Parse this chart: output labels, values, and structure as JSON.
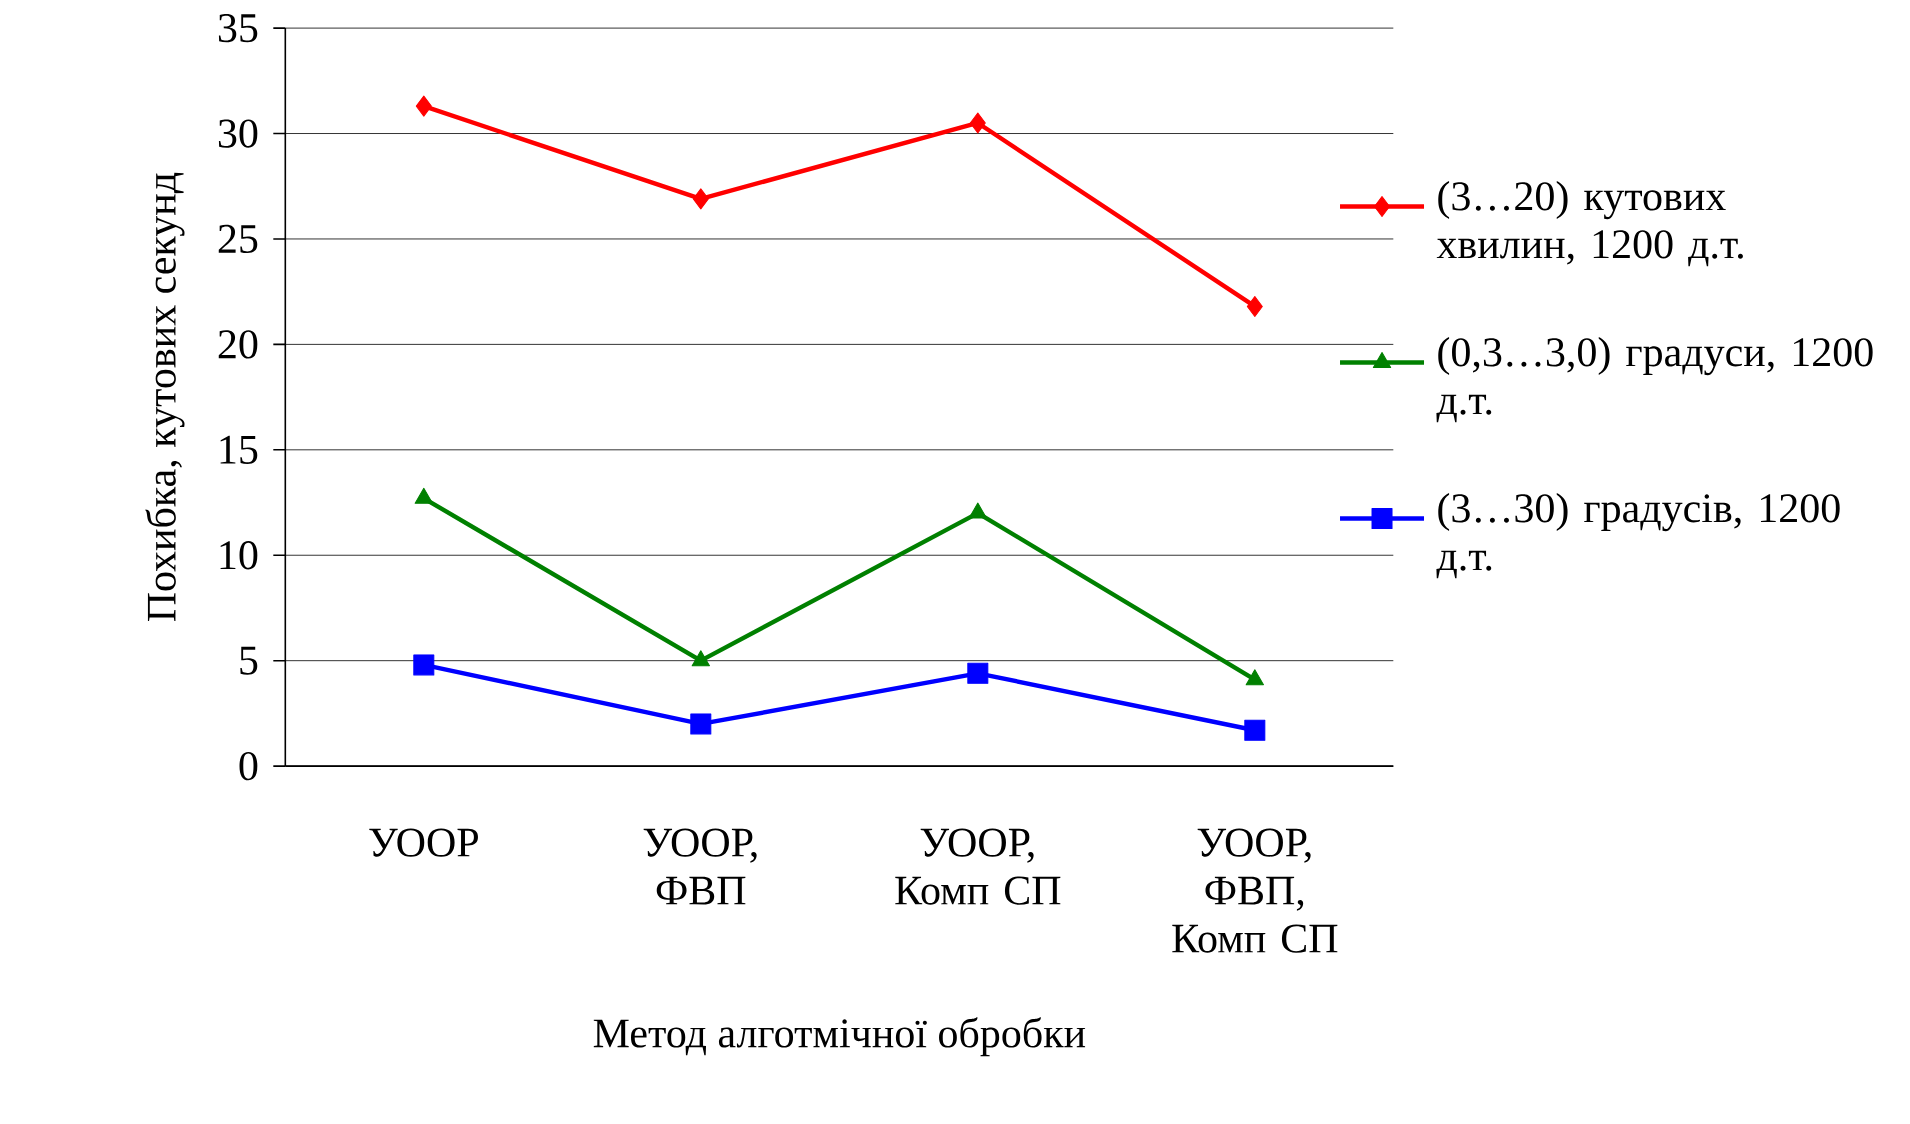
{
  "chart_data": {
    "type": "line",
    "xlabel": "Метод алготмічної обробки",
    "ylabel": "Похибка, кутових секунд",
    "categories": [
      "УООР",
      "УООР, ФВП",
      "УООР, Комп СП",
      "УООР, ФВП, Комп СП"
    ],
    "ylim": [
      0,
      35
    ],
    "yticks": [
      0,
      5,
      10,
      15,
      20,
      25,
      30,
      35
    ],
    "grid": "y",
    "legend": "right",
    "series": [
      {
        "name": "(3…20) кутових хвилин, 1200 д.т.",
        "color": "#ff0000",
        "marker": "diamond",
        "values": [
          31.3,
          26.9,
          30.5,
          21.8
        ]
      },
      {
        "name": "(0,3…3,0) градуси, 1200 д.т.",
        "color": "#008000",
        "marker": "triangle",
        "values": [
          12.7,
          5.0,
          12.0,
          4.1
        ]
      },
      {
        "name": "(3…30) градусів, 1200 д.т.",
        "color": "#0000ff",
        "marker": "square",
        "values": [
          4.8,
          2.0,
          4.4,
          1.7
        ]
      }
    ]
  }
}
